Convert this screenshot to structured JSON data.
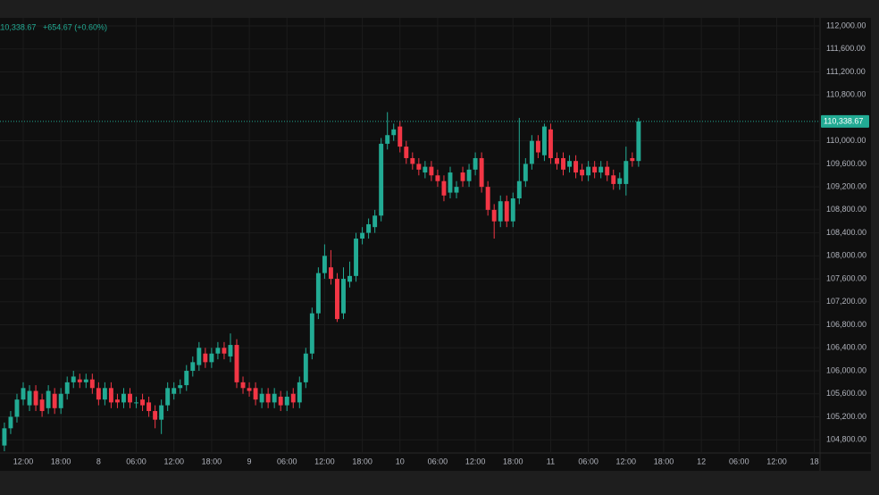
{
  "chart_data": {
    "type": "candlestick",
    "up_color": "#22ab94",
    "down_color": "#f23645",
    "grid": true,
    "header": {
      "change": "+654.67 (+0.60%)"
    },
    "last_price": {
      "value": 110338.67,
      "label": "110,338.67"
    },
    "xlim": [
      -0.7,
      129.9
    ],
    "ylim": [
      104570,
      112140
    ],
    "xticks": [
      {
        "value": 3,
        "label": "12:00"
      },
      {
        "value": 9,
        "label": "18:00"
      },
      {
        "value": 15,
        "label": "8"
      },
      {
        "value": 21,
        "label": "06:00"
      },
      {
        "value": 27,
        "label": "12:00"
      },
      {
        "value": 33,
        "label": "18:00"
      },
      {
        "value": 39,
        "label": "9"
      },
      {
        "value": 45,
        "label": "06:00"
      },
      {
        "value": 51,
        "label": "12:00"
      },
      {
        "value": 57,
        "label": "18:00"
      },
      {
        "value": 63,
        "label": "10"
      },
      {
        "value": 69,
        "label": "06:00"
      },
      {
        "value": 75,
        "label": "12:00"
      },
      {
        "value": 81,
        "label": "18:00"
      },
      {
        "value": 87,
        "label": "11"
      },
      {
        "value": 93,
        "label": "06:00"
      },
      {
        "value": 99,
        "label": "12:00"
      },
      {
        "value": 105,
        "label": "18:00"
      },
      {
        "value": 111,
        "label": "12"
      },
      {
        "value": 117,
        "label": "06:00"
      },
      {
        "value": 123,
        "label": "12:00"
      },
      {
        "value": 129,
        "label": "18"
      }
    ],
    "yticks": [
      {
        "value": 104800,
        "label": "104,800.00"
      },
      {
        "value": 105200,
        "label": "105,200.00"
      },
      {
        "value": 105600,
        "label": "105,600.00"
      },
      {
        "value": 106000,
        "label": "106,000.00"
      },
      {
        "value": 106400,
        "label": "106,400.00"
      },
      {
        "value": 106800,
        "label": "106,800.00"
      },
      {
        "value": 107200,
        "label": "107,200.00"
      },
      {
        "value": 107600,
        "label": "107,600.00"
      },
      {
        "value": 108000,
        "label": "108,000.00"
      },
      {
        "value": 108400,
        "label": "108,400.00"
      },
      {
        "value": 108800,
        "label": "108,800.00"
      },
      {
        "value": 109200,
        "label": "109,200.00"
      },
      {
        "value": 109600,
        "label": "109,600.00"
      },
      {
        "value": 110000,
        "label": "110,000.00"
      },
      {
        "value": 110800,
        "label": "110,800.00"
      },
      {
        "value": 111200,
        "label": "111,200.00"
      },
      {
        "value": 111600,
        "label": "111,600.00"
      },
      {
        "value": 112000,
        "label": "112,000.00"
      }
    ],
    "x": [
      0,
      1,
      2,
      3,
      4,
      5,
      6,
      7,
      8,
      9,
      10,
      11,
      12,
      13,
      14,
      15,
      16,
      17,
      18,
      19,
      20,
      21,
      22,
      23,
      24,
      25,
      26,
      27,
      28,
      29,
      30,
      31,
      32,
      33,
      34,
      35,
      36,
      37,
      38,
      39,
      40,
      41,
      42,
      43,
      44,
      45,
      46,
      47,
      48,
      49,
      50,
      51,
      52,
      53,
      54,
      55,
      56,
      57,
      58,
      59,
      60,
      61,
      62,
      63,
      64,
      65,
      66,
      67,
      68,
      69,
      70,
      71,
      72,
      73,
      74,
      75,
      76,
      77,
      78,
      79,
      80,
      81,
      82,
      83,
      84,
      85,
      86,
      87,
      88,
      89,
      90,
      91,
      92,
      93,
      94,
      95,
      96,
      97,
      98,
      99,
      100,
      101
    ],
    "open": [
      104700,
      105000,
      105200,
      105500,
      105400,
      105650,
      105500,
      105350,
      105600,
      105350,
      105600,
      105800,
      105850,
      105800,
      105850,
      105700,
      105500,
      105700,
      105500,
      105450,
      105600,
      105450,
      105500,
      105450,
      105300,
      105150,
      105400,
      105600,
      105700,
      105750,
      106000,
      106100,
      106300,
      106150,
      106300,
      106400,
      106250,
      106450,
      105800,
      105700,
      105700,
      105450,
      105600,
      105450,
      105550,
      105400,
      105600,
      105450,
      105800,
      106300,
      107000,
      107700,
      107800,
      107600,
      107000,
      107550,
      107650,
      108300,
      108400,
      108500,
      108700,
      109950,
      110100,
      110250,
      109900,
      109700,
      109600,
      109450,
      109550,
      109400,
      109300,
      109100,
      109100,
      109450,
      109300,
      109500,
      109700,
      109200,
      108800,
      108600,
      108950,
      108600,
      109000,
      109300,
      109600,
      110000,
      109750,
      110200,
      109700,
      109700,
      109550,
      109650,
      109500,
      109400,
      109550,
      109450,
      109550,
      109400,
      109250,
      109250,
      109700,
      109650
    ],
    "high": [
      105100,
      105300,
      105600,
      105800,
      105750,
      105750,
      105600,
      105750,
      105700,
      105700,
      105900,
      106000,
      105950,
      105950,
      105950,
      105800,
      105800,
      105800,
      105600,
      105700,
      105700,
      105550,
      105600,
      105550,
      105400,
      105500,
      105800,
      105800,
      105850,
      106100,
      106250,
      106500,
      106400,
      106400,
      106500,
      106500,
      106650,
      106550,
      105900,
      105800,
      105800,
      105700,
      105700,
      105700,
      105650,
      105650,
      105700,
      105900,
      106400,
      107100,
      107800,
      108200,
      108100,
      107700,
      107800,
      107900,
      108400,
      108500,
      108650,
      108800,
      110050,
      110500,
      110300,
      110350,
      110000,
      109800,
      109700,
      109650,
      109650,
      109500,
      109400,
      109550,
      109300,
      109550,
      109600,
      109800,
      109800,
      109300,
      108900,
      109050,
      109050,
      109100,
      110400,
      109700,
      110100,
      110100,
      110300,
      110300,
      109800,
      109800,
      109750,
      109750,
      109600,
      109650,
      109650,
      109650,
      109650,
      109500,
      109450,
      109900,
      109800,
      110400
    ],
    "low": [
      104600,
      104900,
      105100,
      105400,
      105300,
      105300,
      105200,
      105250,
      105250,
      105250,
      105500,
      105700,
      105700,
      105700,
      105600,
      105400,
      105400,
      105350,
      105350,
      105350,
      105350,
      105350,
      105300,
      105200,
      105000,
      104900,
      105300,
      105500,
      105600,
      105650,
      105900,
      106000,
      106050,
      106050,
      106200,
      106200,
      106150,
      105700,
      105600,
      105550,
      105400,
      105350,
      105350,
      105350,
      105300,
      105300,
      105350,
      105350,
      105700,
      106200,
      106900,
      107600,
      107500,
      106850,
      106900,
      107450,
      107550,
      108200,
      108300,
      108400,
      108600,
      109850,
      110000,
      109800,
      109600,
      109500,
      109400,
      109350,
      109300,
      109200,
      108950,
      109000,
      109000,
      109200,
      109200,
      109400,
      109100,
      108700,
      108300,
      108500,
      108500,
      108500,
      108900,
      109200,
      109500,
      109700,
      109650,
      109600,
      109500,
      109400,
      109450,
      109350,
      109300,
      109300,
      109350,
      109350,
      109300,
      109150,
      109150,
      109050,
      109550,
      109550
    ],
    "close": [
      105000,
      105200,
      105500,
      105700,
      105650,
      105400,
      105300,
      105650,
      105350,
      105600,
      105800,
      105900,
      105800,
      105850,
      105700,
      105500,
      105700,
      105450,
      105450,
      105600,
      105450,
      105450,
      105400,
      105300,
      105150,
      105400,
      105700,
      105700,
      105750,
      106000,
      106150,
      106400,
      106150,
      106300,
      106400,
      106300,
      106450,
      105800,
      105700,
      105650,
      105500,
      105600,
      105450,
      105600,
      105400,
      105550,
      105450,
      105800,
      106300,
      107000,
      107700,
      108000,
      107600,
      106900,
      107600,
      107650,
      108300,
      108400,
      108550,
      108700,
      109950,
      110100,
      110200,
      109900,
      109700,
      109600,
      109500,
      109550,
      109400,
      109300,
      109050,
      109450,
      109200,
      109300,
      109500,
      109700,
      109200,
      108800,
      108600,
      108950,
      108600,
      109000,
      109300,
      109600,
      110000,
      109800,
      110250,
      109700,
      109600,
      109500,
      109650,
      109450,
      109400,
      109550,
      109450,
      109550,
      109400,
      109250,
      109350,
      109650,
      109650,
      110338.67
    ]
  }
}
